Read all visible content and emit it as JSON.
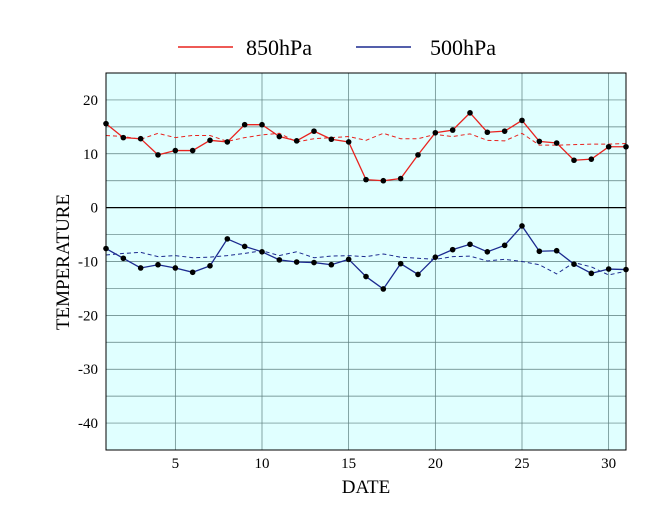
{
  "chart_data": {
    "type": "line",
    "xlabel": "DATE",
    "ylabel": "TEMPERATURE",
    "xlim": [
      1,
      31
    ],
    "ylim": [
      -45,
      25
    ],
    "xticks": [
      5,
      10,
      15,
      20,
      25,
      30
    ],
    "yticks": [
      20,
      10,
      0,
      -10,
      -20,
      -30,
      -40
    ],
    "grid": true,
    "legend_position": "top",
    "x": [
      1,
      2,
      3,
      4,
      5,
      6,
      7,
      8,
      9,
      10,
      11,
      12,
      13,
      14,
      15,
      16,
      17,
      18,
      19,
      20,
      21,
      22,
      23,
      24,
      25,
      26,
      27,
      28,
      29,
      30,
      31
    ],
    "series": [
      {
        "name": "850hPa",
        "color": "#e8231f",
        "values": [
          15.6,
          13.0,
          12.8,
          9.8,
          10.6,
          10.6,
          12.5,
          12.2,
          15.4,
          15.4,
          13.2,
          12.4,
          14.2,
          12.7,
          12.2,
          5.2,
          5.0,
          5.4,
          9.8,
          13.9,
          14.4,
          17.6,
          14.0,
          14.2,
          16.2,
          12.3,
          12.0,
          8.8,
          9.0,
          11.3,
          11.3
        ],
        "normal": [
          13.4,
          13.2,
          12.7,
          13.8,
          13.0,
          13.4,
          13.4,
          12.3,
          13.0,
          13.5,
          13.8,
          12.2,
          12.8,
          13.0,
          13.2,
          12.5,
          13.8,
          12.8,
          12.8,
          13.6,
          13.2,
          13.7,
          12.5,
          12.4,
          13.8,
          11.6,
          11.6,
          11.7,
          11.8,
          11.8,
          11.9
        ]
      },
      {
        "name": "500hPa",
        "color": "#1c2a8f",
        "values": [
          -7.6,
          -9.4,
          -11.2,
          -10.6,
          -11.2,
          -12.0,
          -10.8,
          -5.8,
          -7.2,
          -8.2,
          -9.7,
          -10.1,
          -10.2,
          -10.6,
          -9.6,
          -12.8,
          -15.1,
          -10.4,
          -12.4,
          -9.2,
          -7.8,
          -6.8,
          -8.2,
          -7.0,
          -3.4,
          -8.1,
          -8.0,
          -10.5,
          -12.2,
          -11.4,
          -11.5
        ],
        "normal": [
          -8.8,
          -8.5,
          -8.3,
          -9.1,
          -8.9,
          -9.3,
          -9.2,
          -8.9,
          -8.5,
          -8.0,
          -8.9,
          -8.2,
          -9.3,
          -9.0,
          -8.9,
          -9.1,
          -8.6,
          -9.2,
          -9.4,
          -9.6,
          -9.1,
          -9.0,
          -9.9,
          -9.6,
          -10.0,
          -10.6,
          -12.3,
          -10.2,
          -11.0,
          -12.5,
          -11.8
        ]
      }
    ],
    "style": {
      "plot_bg": "#e0ffff",
      "grid_color": "#5b7d7d",
      "zero_line_color": "#000000",
      "marker_color": "#000000"
    }
  }
}
